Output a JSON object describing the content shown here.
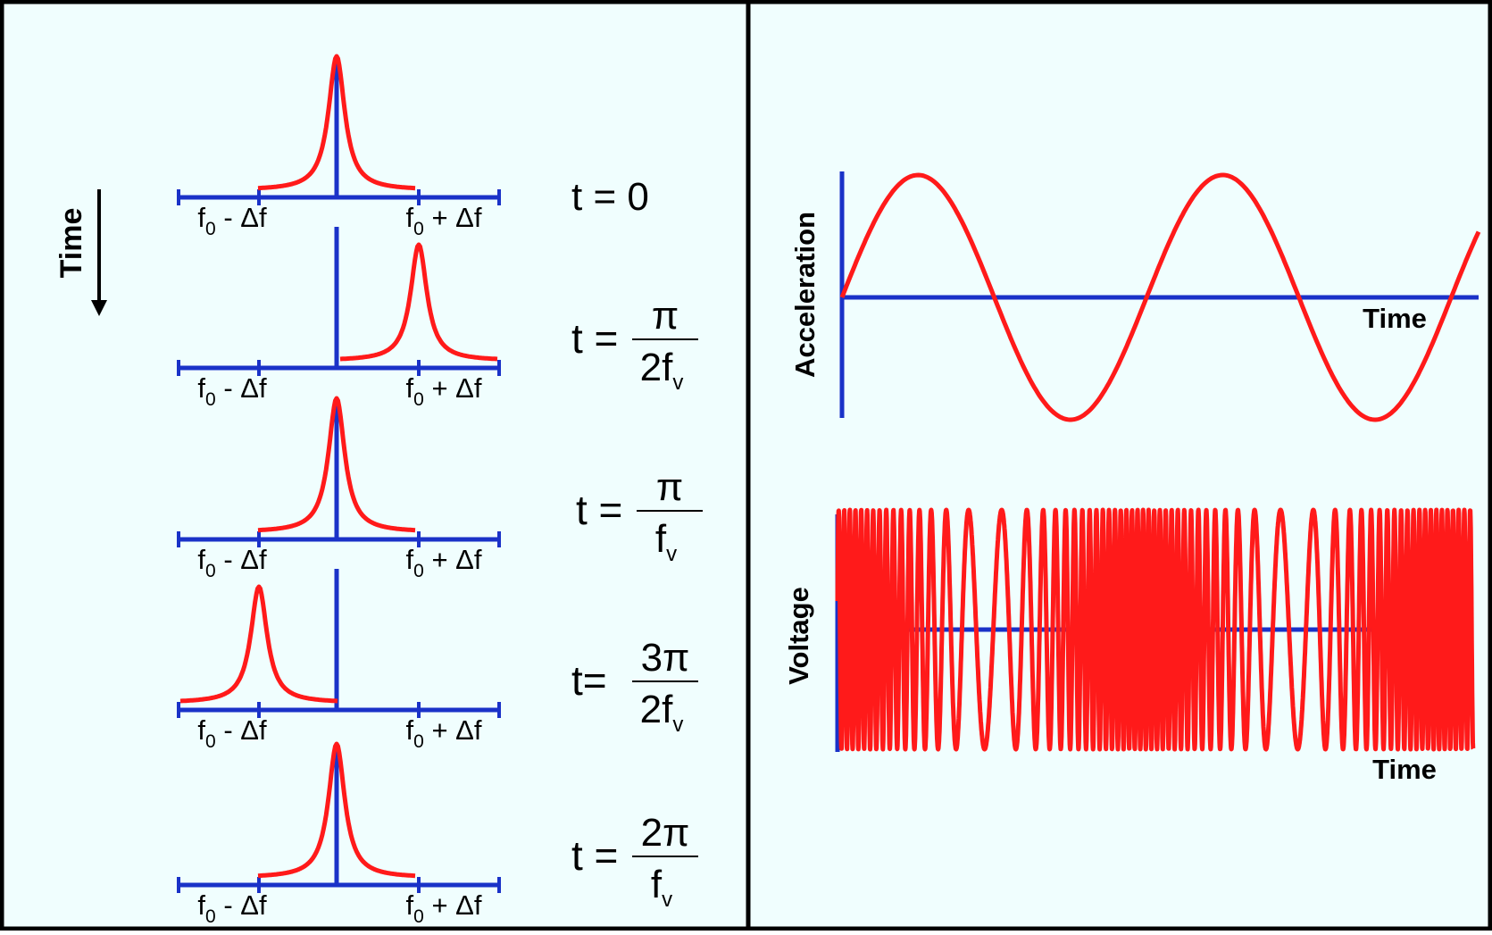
{
  "colors": {
    "background": "#f0fefe",
    "border": "#000000",
    "axis": "#1a32c8",
    "curve": "#ff1a1a",
    "text": "#000000"
  },
  "left_panel": {
    "time_label": "Time",
    "rows": [
      {
        "peak_position": "center",
        "left_tick": {
          "base": "f",
          "sub": "0",
          "rest": " - Δf"
        },
        "right_tick": {
          "base": "f",
          "sub": "0",
          "rest": " + Δf"
        },
        "equation": {
          "lhs": "t = ",
          "value": "0"
        }
      },
      {
        "peak_position": "right",
        "left_tick": {
          "base": "f",
          "sub": "0",
          "rest": " - Δf"
        },
        "right_tick": {
          "base": "f",
          "sub": "0",
          "rest": " + Δf"
        },
        "equation": {
          "lhs": "t = ",
          "numerator": "π",
          "denominator_base": "2f",
          "denominator_sub": "v"
        }
      },
      {
        "peak_position": "center",
        "left_tick": {
          "base": "f",
          "sub": "0",
          "rest": " - Δf"
        },
        "right_tick": {
          "base": "f",
          "sub": "0",
          "rest": " + Δf"
        },
        "equation": {
          "lhs": "t = ",
          "numerator": "π",
          "denominator_base": "f",
          "denominator_sub": "v"
        }
      },
      {
        "peak_position": "left",
        "left_tick": {
          "base": "f",
          "sub": "0",
          "rest": " - Δf"
        },
        "right_tick": {
          "base": "f",
          "sub": "0",
          "rest": " + Δf"
        },
        "equation": {
          "lhs": "t= ",
          "numerator": "3π",
          "denominator_base": "2f",
          "denominator_sub": "v"
        }
      },
      {
        "peak_position": "center",
        "left_tick": {
          "base": "f",
          "sub": "0",
          "rest": " - Δf"
        },
        "right_tick": {
          "base": "f",
          "sub": "0",
          "rest": " + Δf"
        },
        "equation": {
          "lhs": "t = ",
          "numerator": "2π",
          "denominator_base": "f",
          "denominator_sub": "v"
        }
      }
    ]
  },
  "right_panel": {
    "acceleration": {
      "ylabel": "Acceleration",
      "xlabel": "Time",
      "cycles": 2
    },
    "voltage": {
      "ylabel": "Voltage",
      "xlabel": "Time"
    }
  }
}
